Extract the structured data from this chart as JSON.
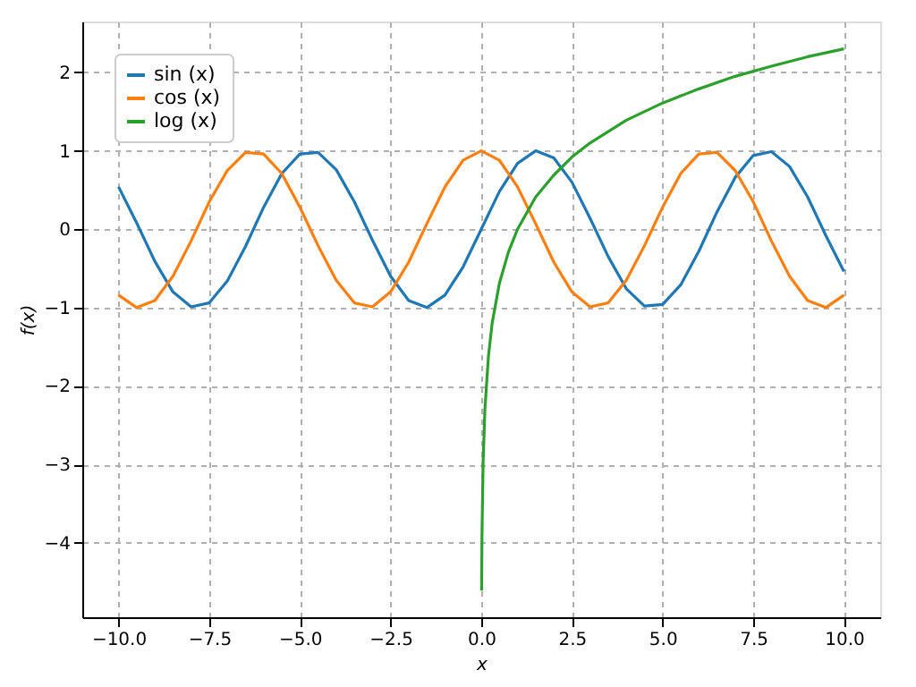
{
  "chart_data": {
    "type": "line",
    "xlabel": "x",
    "ylabel": "f(x)",
    "xlim": [
      -11,
      11
    ],
    "ylim": [
      -4.95,
      2.65
    ],
    "xticks": [
      {
        "value": -10,
        "label": "−10.0"
      },
      {
        "value": -7.5,
        "label": "−7.5"
      },
      {
        "value": -5,
        "label": "−5.0"
      },
      {
        "value": -2.5,
        "label": "−2.5"
      },
      {
        "value": 0,
        "label": "0.0"
      },
      {
        "value": 2.5,
        "label": "2.5"
      },
      {
        "value": 5,
        "label": "5.0"
      },
      {
        "value": 7.5,
        "label": "7.5"
      },
      {
        "value": 10,
        "label": "10.0"
      }
    ],
    "yticks": [
      {
        "value": -4,
        "label": "−4"
      },
      {
        "value": -3,
        "label": "−3"
      },
      {
        "value": -2,
        "label": "−2"
      },
      {
        "value": -1,
        "label": "−1"
      },
      0,
      1,
      2
    ],
    "grid": true,
    "legend": "top left",
    "line_style": "solid",
    "series": [
      {
        "name": "sin (x)",
        "color": "#1f77b4",
        "x": [
          -10,
          -9.5,
          -9,
          -8.5,
          -8,
          -7.5,
          -7,
          -6.5,
          -6,
          -5.5,
          -5,
          -4.5,
          -4,
          -3.5,
          -3,
          -2.5,
          -2,
          -1.5,
          -1,
          -0.5,
          0,
          0.5,
          1,
          1.5,
          2,
          2.5,
          3,
          3.5,
          4,
          4.5,
          5,
          5.5,
          6,
          6.5,
          7,
          7.5,
          8,
          8.5,
          9,
          9.5,
          10
        ],
        "values": [
          0.54,
          0.08,
          -0.41,
          -0.8,
          -0.99,
          -0.94,
          -0.66,
          -0.22,
          0.28,
          0.71,
          0.96,
          0.98,
          0.76,
          0.35,
          -0.14,
          -0.6,
          -0.91,
          -1.0,
          -0.84,
          -0.48,
          0,
          0.48,
          0.84,
          1.0,
          0.91,
          0.6,
          0.14,
          -0.35,
          -0.76,
          -0.98,
          -0.96,
          -0.71,
          -0.28,
          0.22,
          0.66,
          0.94,
          0.99,
          0.8,
          0.41,
          -0.08,
          -0.54
        ]
      },
      {
        "name": "cos (x)",
        "color": "#ff7f0e",
        "x": [
          -10,
          -9.5,
          -9,
          -8.5,
          -8,
          -7.5,
          -7,
          -6.5,
          -6,
          -5.5,
          -5,
          -4.5,
          -4,
          -3.5,
          -3,
          -2.5,
          -2,
          -1.5,
          -1,
          -0.5,
          0,
          0.5,
          1,
          1.5,
          2,
          2.5,
          3,
          3.5,
          4,
          4.5,
          5,
          5.5,
          6,
          6.5,
          7,
          7.5,
          8,
          8.5,
          9,
          9.5,
          10
        ],
        "values": [
          -0.84,
          -1.0,
          -0.91,
          -0.6,
          -0.15,
          0.35,
          0.75,
          0.98,
          0.96,
          0.71,
          0.28,
          -0.21,
          -0.65,
          -0.94,
          -0.99,
          -0.8,
          -0.42,
          0.07,
          0.54,
          0.88,
          1.0,
          0.88,
          0.54,
          0.07,
          -0.42,
          -0.8,
          -0.99,
          -0.94,
          -0.65,
          -0.21,
          0.28,
          0.71,
          0.96,
          0.98,
          0.75,
          0.35,
          -0.15,
          -0.6,
          -0.91,
          -1.0,
          -0.84
        ]
      },
      {
        "name": "log (x)",
        "color": "#2ca02c",
        "x": [
          0.01,
          0.02,
          0.05,
          0.1,
          0.2,
          0.3,
          0.5,
          0.75,
          1,
          1.5,
          2,
          2.5,
          3,
          4,
          5,
          6,
          7,
          8,
          9,
          10
        ],
        "values": [
          -4.61,
          -3.91,
          -3.0,
          -2.3,
          -1.61,
          -1.2,
          -0.69,
          -0.29,
          0,
          0.41,
          0.69,
          0.92,
          1.1,
          1.39,
          1.61,
          1.79,
          1.95,
          2.08,
          2.2,
          2.3
        ]
      }
    ]
  }
}
